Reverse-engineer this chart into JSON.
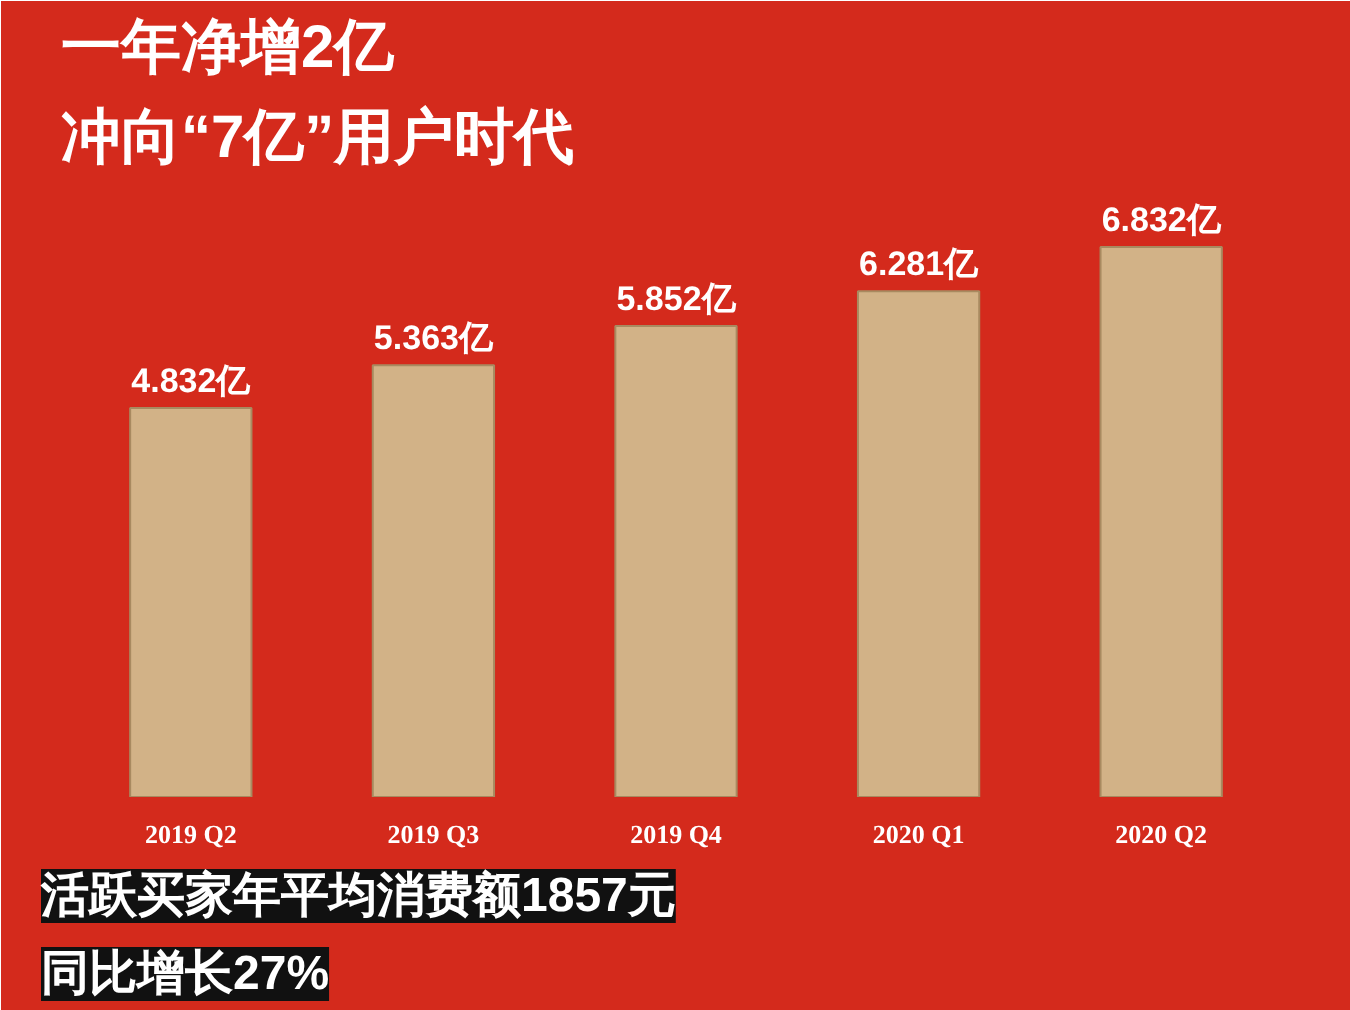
{
  "chart_data": {
    "type": "bar",
    "title": "一年净增2亿",
    "subtitle": "冲向“7亿”用户时代",
    "categories": [
      "2019 Q2",
      "2019 Q3",
      "2019 Q4",
      "2020 Q1",
      "2020 Q2"
    ],
    "values": [
      4.832,
      5.363,
      5.852,
      6.281,
      6.832
    ],
    "value_labels": [
      "4.832亿",
      "5.363亿",
      "5.852亿",
      "6.281亿",
      "6.832亿"
    ],
    "color": "#d2b287",
    "grid": false,
    "annotations": [
      "活跃买家年平均消费额1857元",
      "同比增长27%"
    ]
  }
}
